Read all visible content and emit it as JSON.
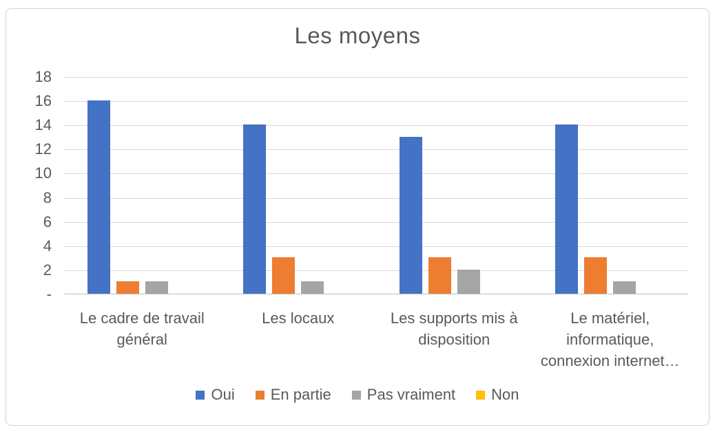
{
  "chart_data": {
    "type": "bar",
    "title": "Les moyens",
    "categories": [
      "Le cadre de travail général",
      "Les locaux",
      "Les supports mis à disposition",
      "Le matériel, informatique, connexion internet…"
    ],
    "series": [
      {
        "name": "Oui",
        "color": "#4472C4",
        "values": [
          16,
          14,
          13,
          14
        ]
      },
      {
        "name": "En partie",
        "color": "#ED7D31",
        "values": [
          1,
          3,
          3,
          3
        ]
      },
      {
        "name": "Pas vraiment",
        "color": "#A5A5A5",
        "values": [
          1,
          1,
          2,
          1
        ]
      },
      {
        "name": "Non",
        "color": "#FFC000",
        "values": [
          0,
          0,
          0,
          0
        ]
      }
    ],
    "xlabel": "",
    "ylabel": "",
    "ylim": [
      0,
      18
    ],
    "ytick_step": 2,
    "yticks": [
      {
        "value": 0,
        "label": "-"
      },
      {
        "value": 2,
        "label": "2"
      },
      {
        "value": 4,
        "label": "4"
      },
      {
        "value": 6,
        "label": "6"
      },
      {
        "value": 8,
        "label": "8"
      },
      {
        "value": 10,
        "label": "10"
      },
      {
        "value": 12,
        "label": "12"
      },
      {
        "value": 14,
        "label": "14"
      },
      {
        "value": 16,
        "label": "16"
      },
      {
        "value": 18,
        "label": "18"
      }
    ],
    "grid": true,
    "legend_position": "bottom",
    "colors": {
      "text": "#595959",
      "gridline": "#D9D9D9",
      "axis_line": "#BFBFBF",
      "chart_border": "#D2D2D2",
      "background": "#FFFFFF"
    }
  }
}
